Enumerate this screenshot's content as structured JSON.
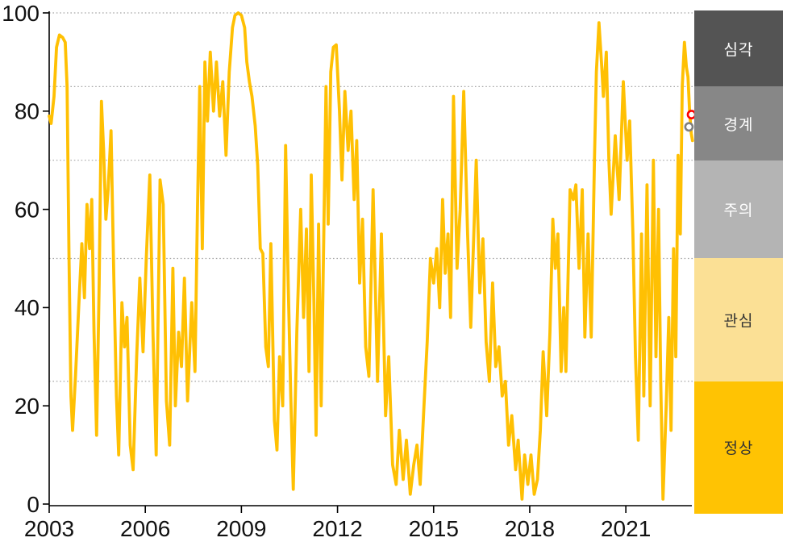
{
  "colors": {
    "background": "#ffffff",
    "line": "#FFC003",
    "grid": "#A6A6A6",
    "axis": "#000000",
    "tick_text": "#111111",
    "marker_red": "#FF0000",
    "marker_gray": "#808080",
    "marker_fill": "#FFFFFF"
  },
  "zones": [
    {
      "id": "severe",
      "label": "심각",
      "from": 85,
      "to": 100,
      "color": "#545454",
      "text_color": "#FFFFFF"
    },
    {
      "id": "alert",
      "label": "경계",
      "from": 70,
      "to": 85,
      "color": "#878787",
      "text_color": "#FFFFFF"
    },
    {
      "id": "caution",
      "label": "주의",
      "from": 50,
      "to": 70,
      "color": "#B4B4B4",
      "text_color": "#FFFFFF"
    },
    {
      "id": "interest",
      "label": "관심",
      "from": 25,
      "to": 50,
      "color": "#FBE095",
      "text_color": "#333333"
    },
    {
      "id": "normal",
      "label": "정상",
      "from": 0,
      "to": 25,
      "color": "#FFC303",
      "text_color": "#333333"
    }
  ],
  "chart_data": {
    "type": "line",
    "title": "",
    "xlabel": "",
    "ylabel": "",
    "xlim": [
      2003,
      2023.35
    ],
    "ylim": [
      0,
      100
    ],
    "x_ticks": [
      {
        "value": 2003,
        "label": "2003"
      },
      {
        "value": 2006,
        "label": "2006"
      },
      {
        "value": 2009,
        "label": "2009"
      },
      {
        "value": 2012,
        "label": "2012"
      },
      {
        "value": 2015,
        "label": "2015"
      },
      {
        "value": 2018,
        "label": "2018"
      },
      {
        "value": 2021,
        "label": "2021"
      }
    ],
    "y_ticks": [
      {
        "value": 0,
        "label": "0"
      },
      {
        "value": 20,
        "label": "20"
      },
      {
        "value": 40,
        "label": "40"
      },
      {
        "value": 60,
        "label": "60"
      },
      {
        "value": 80,
        "label": "80"
      },
      {
        "value": 100,
        "label": "100"
      }
    ],
    "gridline_values": [
      25,
      50,
      70,
      85,
      100
    ],
    "grid_style": "dotted",
    "legend_position": "right-bands",
    "series": [
      {
        "name": "index",
        "color": "#FFC003",
        "points": [
          [
            2003.0,
            79
          ],
          [
            2003.06,
            77.5
          ],
          [
            2003.15,
            83
          ],
          [
            2003.23,
            93
          ],
          [
            2003.32,
            95.5
          ],
          [
            2003.42,
            95
          ],
          [
            2003.5,
            94
          ],
          [
            2003.56,
            85
          ],
          [
            2003.62,
            50
          ],
          [
            2003.68,
            22
          ],
          [
            2003.73,
            15
          ],
          [
            2003.82,
            26
          ],
          [
            2003.92,
            40
          ],
          [
            2004.02,
            53
          ],
          [
            2004.1,
            42
          ],
          [
            2004.18,
            61
          ],
          [
            2004.26,
            52
          ],
          [
            2004.33,
            62
          ],
          [
            2004.4,
            35
          ],
          [
            2004.48,
            14
          ],
          [
            2004.56,
            45
          ],
          [
            2004.63,
            82
          ],
          [
            2004.7,
            72
          ],
          [
            2004.77,
            58
          ],
          [
            2004.84,
            64
          ],
          [
            2004.93,
            76
          ],
          [
            2005.02,
            45
          ],
          [
            2005.1,
            22
          ],
          [
            2005.17,
            10
          ],
          [
            2005.27,
            41
          ],
          [
            2005.35,
            32
          ],
          [
            2005.43,
            38
          ],
          [
            2005.53,
            12
          ],
          [
            2005.62,
            7
          ],
          [
            2005.73,
            30
          ],
          [
            2005.83,
            46
          ],
          [
            2005.93,
            31
          ],
          [
            2006.03,
            50
          ],
          [
            2006.14,
            67
          ],
          [
            2006.24,
            35
          ],
          [
            2006.34,
            10
          ],
          [
            2006.46,
            66
          ],
          [
            2006.56,
            61
          ],
          [
            2006.66,
            21
          ],
          [
            2006.76,
            12
          ],
          [
            2006.86,
            48
          ],
          [
            2006.94,
            20
          ],
          [
            2007.04,
            35
          ],
          [
            2007.13,
            28
          ],
          [
            2007.22,
            46
          ],
          [
            2007.32,
            21
          ],
          [
            2007.45,
            41
          ],
          [
            2007.55,
            27
          ],
          [
            2007.63,
            60
          ],
          [
            2007.7,
            85
          ],
          [
            2007.78,
            52
          ],
          [
            2007.86,
            90
          ],
          [
            2007.94,
            78
          ],
          [
            2008.03,
            92
          ],
          [
            2008.13,
            80
          ],
          [
            2008.22,
            90
          ],
          [
            2008.32,
            79
          ],
          [
            2008.42,
            86
          ],
          [
            2008.52,
            71
          ],
          [
            2008.62,
            88
          ],
          [
            2008.72,
            97
          ],
          [
            2008.8,
            99.5
          ],
          [
            2008.9,
            100
          ],
          [
            2009.0,
            99.5
          ],
          [
            2009.1,
            97
          ],
          [
            2009.17,
            90
          ],
          [
            2009.25,
            86
          ],
          [
            2009.33,
            83
          ],
          [
            2009.43,
            77
          ],
          [
            2009.51,
            69
          ],
          [
            2009.59,
            52
          ],
          [
            2009.67,
            51
          ],
          [
            2009.76,
            32
          ],
          [
            2009.84,
            28
          ],
          [
            2009.92,
            53
          ],
          [
            2010.03,
            17
          ],
          [
            2010.11,
            11
          ],
          [
            2010.19,
            30
          ],
          [
            2010.29,
            20
          ],
          [
            2010.38,
            73
          ],
          [
            2010.46,
            45
          ],
          [
            2010.54,
            22
          ],
          [
            2010.62,
            3
          ],
          [
            2010.73,
            35
          ],
          [
            2010.85,
            60
          ],
          [
            2010.94,
            38
          ],
          [
            2011.03,
            56
          ],
          [
            2011.11,
            27
          ],
          [
            2011.18,
            67
          ],
          [
            2011.26,
            42
          ],
          [
            2011.33,
            14
          ],
          [
            2011.41,
            57
          ],
          [
            2011.49,
            20
          ],
          [
            2011.56,
            50
          ],
          [
            2011.64,
            85
          ],
          [
            2011.71,
            57
          ],
          [
            2011.79,
            88
          ],
          [
            2011.87,
            93
          ],
          [
            2011.96,
            93.5
          ],
          [
            2012.06,
            80
          ],
          [
            2012.14,
            66
          ],
          [
            2012.23,
            84
          ],
          [
            2012.33,
            72
          ],
          [
            2012.42,
            80
          ],
          [
            2012.52,
            62
          ],
          [
            2012.6,
            74
          ],
          [
            2012.69,
            45
          ],
          [
            2012.78,
            58
          ],
          [
            2012.88,
            32
          ],
          [
            2012.98,
            26
          ],
          [
            2013.11,
            64
          ],
          [
            2013.25,
            25
          ],
          [
            2013.37,
            55
          ],
          [
            2013.5,
            18
          ],
          [
            2013.6,
            30
          ],
          [
            2013.72,
            8
          ],
          [
            2013.83,
            4
          ],
          [
            2013.93,
            15
          ],
          [
            2014.05,
            5
          ],
          [
            2014.15,
            13
          ],
          [
            2014.27,
            2
          ],
          [
            2014.38,
            8
          ],
          [
            2014.48,
            12
          ],
          [
            2014.58,
            4
          ],
          [
            2014.7,
            20
          ],
          [
            2014.8,
            33
          ],
          [
            2014.9,
            50
          ],
          [
            2015.0,
            45
          ],
          [
            2015.1,
            52
          ],
          [
            2015.19,
            40
          ],
          [
            2015.28,
            62
          ],
          [
            2015.36,
            47
          ],
          [
            2015.45,
            55
          ],
          [
            2015.53,
            38
          ],
          [
            2015.62,
            83
          ],
          [
            2015.73,
            48
          ],
          [
            2015.83,
            60
          ],
          [
            2015.94,
            84
          ],
          [
            2016.06,
            55
          ],
          [
            2016.16,
            36
          ],
          [
            2016.33,
            70
          ],
          [
            2016.44,
            43
          ],
          [
            2016.54,
            54
          ],
          [
            2016.64,
            33
          ],
          [
            2016.74,
            25
          ],
          [
            2016.84,
            45
          ],
          [
            2016.94,
            28
          ],
          [
            2017.04,
            32
          ],
          [
            2017.14,
            22
          ],
          [
            2017.24,
            25
          ],
          [
            2017.34,
            12
          ],
          [
            2017.44,
            18
          ],
          [
            2017.56,
            7
          ],
          [
            2017.64,
            13
          ],
          [
            2017.76,
            1
          ],
          [
            2017.84,
            10
          ],
          [
            2017.94,
            4
          ],
          [
            2018.04,
            10
          ],
          [
            2018.14,
            2
          ],
          [
            2018.24,
            5
          ],
          [
            2018.33,
            15
          ],
          [
            2018.42,
            31
          ],
          [
            2018.53,
            18
          ],
          [
            2018.63,
            35
          ],
          [
            2018.72,
            58
          ],
          [
            2018.8,
            48
          ],
          [
            2018.88,
            55
          ],
          [
            2018.98,
            27
          ],
          [
            2019.06,
            40
          ],
          [
            2019.13,
            27
          ],
          [
            2019.26,
            64
          ],
          [
            2019.36,
            62
          ],
          [
            2019.44,
            65
          ],
          [
            2019.54,
            48
          ],
          [
            2019.64,
            64
          ],
          [
            2019.72,
            34
          ],
          [
            2019.82,
            55
          ],
          [
            2019.92,
            34
          ],
          [
            2020.02,
            70
          ],
          [
            2020.08,
            88
          ],
          [
            2020.16,
            98
          ],
          [
            2020.24,
            90
          ],
          [
            2020.3,
            83
          ],
          [
            2020.39,
            92
          ],
          [
            2020.47,
            70
          ],
          [
            2020.54,
            59
          ],
          [
            2020.67,
            75
          ],
          [
            2020.79,
            62
          ],
          [
            2020.92,
            86
          ],
          [
            2021.04,
            70
          ],
          [
            2021.12,
            78
          ],
          [
            2021.22,
            55
          ],
          [
            2021.3,
            30
          ],
          [
            2021.39,
            13
          ],
          [
            2021.49,
            55
          ],
          [
            2021.56,
            22
          ],
          [
            2021.66,
            65
          ],
          [
            2021.76,
            20
          ],
          [
            2021.86,
            70
          ],
          [
            2021.94,
            30
          ],
          [
            2022.02,
            60
          ],
          [
            2022.09,
            25
          ],
          [
            2022.16,
            1
          ],
          [
            2022.26,
            20
          ],
          [
            2022.34,
            38
          ],
          [
            2022.41,
            15
          ],
          [
            2022.49,
            52
          ],
          [
            2022.56,
            30
          ],
          [
            2022.63,
            71
          ],
          [
            2022.7,
            55
          ],
          [
            2022.76,
            85
          ],
          [
            2022.83,
            94
          ],
          [
            2022.89,
            89
          ],
          [
            2022.94,
            87
          ],
          [
            2022.99,
            80
          ],
          [
            2023.04,
            75.5
          ],
          [
            2023.08,
            74
          ]
        ]
      }
    ],
    "markers": [
      {
        "name": "gray-marker",
        "x": 2022.97,
        "y": 76.8,
        "ring_color": "#808080"
      },
      {
        "name": "red-marker",
        "x": 2023.05,
        "y": 79.3,
        "ring_color": "#FF0000"
      }
    ]
  }
}
